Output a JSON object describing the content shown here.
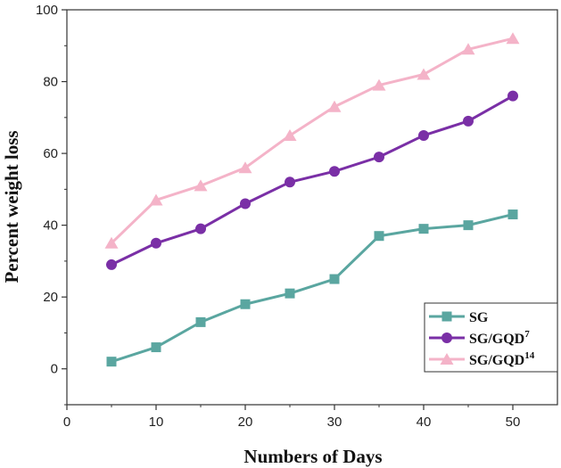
{
  "chart_data": {
    "type": "line",
    "xlabel": "Numbers of Days",
    "ylabel": "Percent weight loss",
    "xlim": [
      0,
      55
    ],
    "ylim": [
      -10,
      100
    ],
    "xticks": [
      0,
      10,
      20,
      30,
      40,
      50
    ],
    "yticks": [
      0,
      20,
      40,
      60,
      80,
      100
    ],
    "x": [
      5,
      10,
      15,
      20,
      25,
      30,
      35,
      40,
      45,
      50
    ],
    "grid": false,
    "legend_position": "bottom-right",
    "series": [
      {
        "name": "SG",
        "legend_label": {
          "base": "SG",
          "sup": ""
        },
        "marker": "square",
        "color": "#5aa6a0",
        "values": [
          2,
          6,
          13,
          18,
          21,
          25,
          37,
          39,
          40,
          43
        ]
      },
      {
        "name": "SG/GQD7",
        "legend_label": {
          "base": "SG/GQD",
          "sup": "7"
        },
        "marker": "circle",
        "color": "#7a2fa6",
        "values": [
          29,
          35,
          39,
          46,
          52,
          55,
          59,
          65,
          69,
          76
        ]
      },
      {
        "name": "SG/GQD14",
        "legend_label": {
          "base": "SG/GQD",
          "sup": "14"
        },
        "marker": "triangle",
        "color": "#f4b3c8",
        "values": [
          35,
          47,
          51,
          56,
          65,
          73,
          79,
          82,
          89,
          92
        ]
      }
    ]
  }
}
